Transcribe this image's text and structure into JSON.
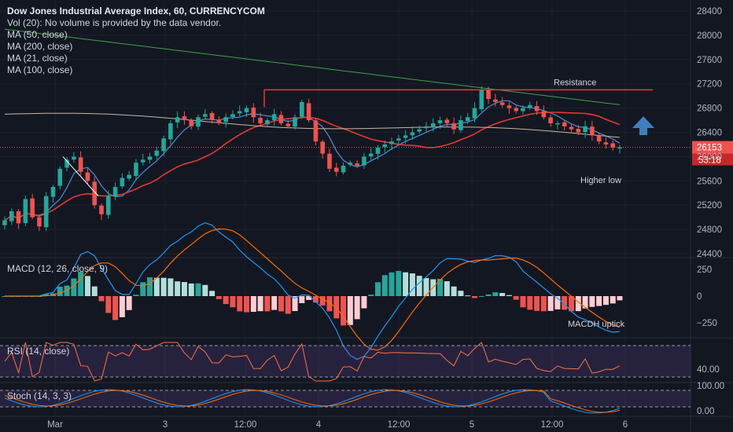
{
  "legend": {
    "title": "Dow Jones Industrial Average Index, 60, CURRENCYCOM",
    "lines": [
      "Vol (20): No volume is provided by the data vendor.",
      "MA (50, close)",
      "MA (200, close)",
      "MA (21, close)",
      "MA (100, close)"
    ]
  },
  "colors": {
    "background": "#131722",
    "up": "#26a69a",
    "down": "#ef5350",
    "ma21": "#4a90d9",
    "ma50": "#c9b8a0",
    "ma100": "#e53935",
    "ma200": "#43a047",
    "macd_line": "#2196f3",
    "signal_line": "#ff6d00",
    "rsi": "#ff7043",
    "stoch_k": "#2196f3",
    "stoch_d": "#ff6d00",
    "band": "#7e57c2",
    "arrow": "#3f7fbf",
    "resistance": "#e53935",
    "price_label": "#ef5350"
  },
  "chart_data": {
    "type": "candlestick",
    "price_axis": {
      "ticks": [
        "28400",
        "28000",
        "27600",
        "27200",
        "26800",
        "26400",
        "26000",
        "25600",
        "25200",
        "24800",
        "24400"
      ],
      "ylim": [
        24400,
        28400
      ]
    },
    "time_axis": {
      "labels": [
        "Mar",
        "3",
        "12:00",
        "4",
        "12:00",
        "5",
        "12:00",
        "6"
      ]
    },
    "current_price": {
      "value": "26153",
      "countdown": "53:18"
    },
    "ohlc_close_path": [
      24950,
      25100,
      24900,
      25300,
      25000,
      24850,
      25350,
      25500,
      25800,
      25950,
      26000,
      25750,
      25600,
      25200,
      25050,
      25350,
      25500,
      25650,
      25700,
      25900,
      25950,
      26000,
      26100,
      26300,
      26550,
      26650,
      26600,
      26500,
      26650,
      26700,
      26600,
      26550,
      26650,
      26700,
      26750,
      26800,
      26650,
      26550,
      26600,
      26700,
      26550,
      26500,
      26650,
      26900,
      26600,
      26250,
      26050,
      25800,
      25750,
      25850,
      25900,
      25850,
      26000,
      26050,
      26150,
      26200,
      26250,
      26300,
      26350,
      26400,
      26450,
      26500,
      26550,
      26600,
      26550,
      26450,
      26600,
      26650,
      26800,
      27100,
      26950,
      26900,
      26850,
      26800,
      26750,
      26800,
      26850,
      26750,
      26650,
      26550,
      26550,
      26500,
      26450,
      26400,
      26500,
      26350,
      26250,
      26200,
      26150,
      26153
    ],
    "annotations": [
      {
        "text": "Resistance",
        "price": 27100
      },
      {
        "text": "Higher low",
        "price": 25980
      }
    ],
    "macd": {
      "label": "MACD (12, 26, close, 9)",
      "ticks": [
        "250",
        "0",
        "−250"
      ],
      "annotation": "MACDH uptick"
    },
    "rsi": {
      "label": "RSI (14, close)",
      "ticks": [
        "40.00"
      ]
    },
    "stoch": {
      "label": "Stoch (14, 3, 3)",
      "ticks": [
        "100.00",
        "0.00"
      ]
    }
  }
}
